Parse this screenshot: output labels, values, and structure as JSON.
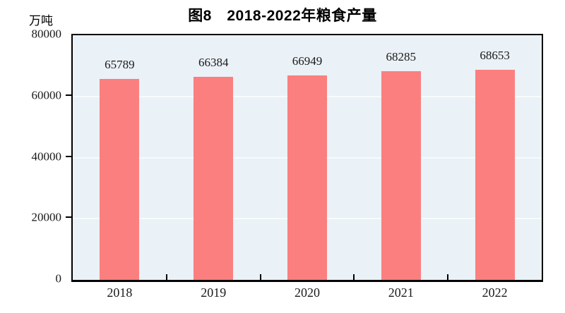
{
  "chart_data": {
    "type": "bar",
    "title": "图8　2018-2022年粮食产量",
    "unit_label": "万吨",
    "categories": [
      "2018",
      "2019",
      "2020",
      "2021",
      "2022"
    ],
    "values": [
      65789,
      66384,
      66949,
      68285,
      68653
    ],
    "xlabel": "",
    "ylabel": "万吨",
    "ylim": [
      0,
      80000
    ],
    "yticks": [
      0,
      20000,
      40000,
      60000,
      80000
    ],
    "grid": true,
    "legend_position": "none"
  },
  "colors": {
    "bar": "#fb7f7f",
    "plot_background": "#eaf1f7",
    "gridline": "#f7fbfd",
    "axis": "#000000",
    "text": "#1a1a1a"
  }
}
